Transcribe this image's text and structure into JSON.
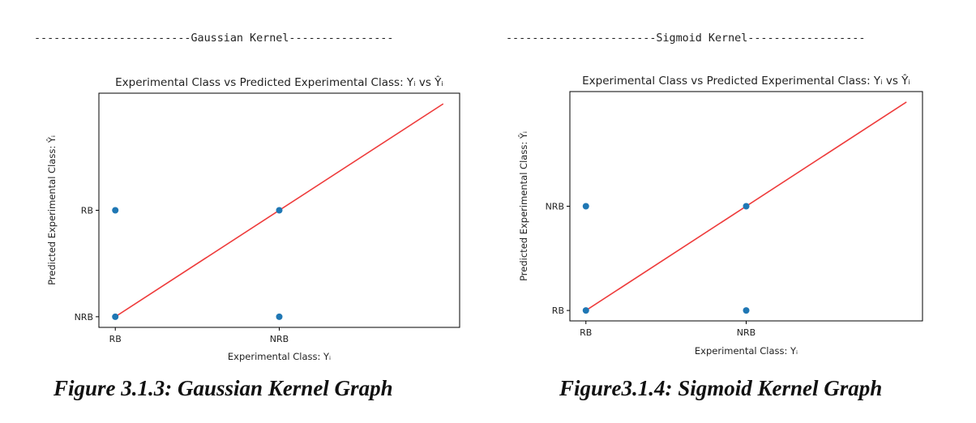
{
  "colors": {
    "marker": "#1f77b4",
    "identity_line": "#ee3b3b",
    "axes": "#000000"
  },
  "panels": [
    {
      "banner": "------------------------Gaussian Kernel----------------",
      "caption": "Figure 3.1.3: Gaussian Kernel Graph"
    },
    {
      "banner": "-----------------------Sigmoid Kernel------------------",
      "caption": "Figure3.1.4: Sigmoid Kernel Graph"
    }
  ],
  "chart_data": [
    {
      "type": "scatter",
      "title": "Experimental Class vs Predicted Experimental Class: Yᵢ vs Ŷᵢ",
      "xlabel": "Experimental Class: Yᵢ",
      "ylabel": "Predicted  Experimental Class: Ŷᵢ",
      "x_ticks": [
        "RB",
        "NRB"
      ],
      "y_ticks": [
        "NRB",
        "RB"
      ],
      "xlim": [
        -0.1,
        2.1
      ],
      "ylim": [
        -0.1,
        2.1
      ],
      "points": [
        {
          "x": 0,
          "y": 0
        },
        {
          "x": 0,
          "y": 1
        },
        {
          "x": 1,
          "y": 0
        },
        {
          "x": 1,
          "y": 1
        }
      ],
      "reference_line": {
        "x": [
          0,
          2
        ],
        "y": [
          0,
          2
        ]
      },
      "grid": false,
      "legend": "none"
    },
    {
      "type": "scatter",
      "title": "Experimental Class vs Predicted Experimental Class: Yᵢ vs Ŷᵢ",
      "xlabel": "Experimental Class: Yᵢ",
      "ylabel": "Predicted  Experimental Class: Ŷᵢ",
      "x_ticks": [
        "RB",
        "NRB"
      ],
      "y_ticks": [
        "RB",
        "NRB"
      ],
      "xlim": [
        -0.1,
        2.1
      ],
      "ylim": [
        -0.1,
        2.1
      ],
      "points": [
        {
          "x": 0,
          "y": 0
        },
        {
          "x": 0,
          "y": 1
        },
        {
          "x": 1,
          "y": 0
        },
        {
          "x": 1,
          "y": 1
        }
      ],
      "reference_line": {
        "x": [
          0,
          2
        ],
        "y": [
          0,
          2
        ]
      },
      "grid": false,
      "legend": "none"
    }
  ]
}
